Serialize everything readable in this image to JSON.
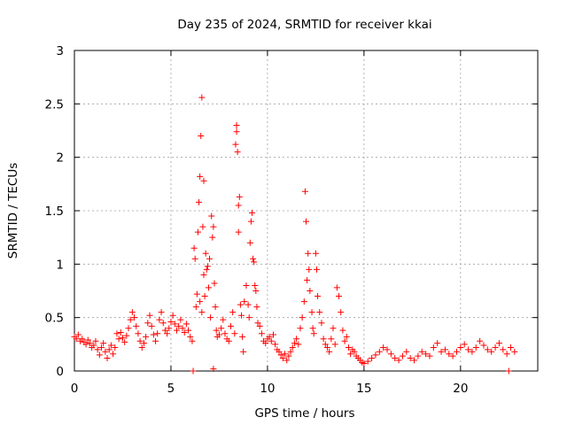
{
  "chart_data": {
    "type": "scatter",
    "title": "Day 235 of 2024, SRMTID for receiver kkai",
    "xlabel": "GPS time / hours",
    "ylabel": "SRMTID / TECUs",
    "xlim": [
      0,
      24
    ],
    "ylim": [
      0,
      3
    ],
    "xticks": [
      0,
      5,
      10,
      15,
      20
    ],
    "xtick_labels": [
      "0",
      "5",
      "10",
      "15",
      "20"
    ],
    "yticks": [
      0,
      0.5,
      1,
      1.5,
      2,
      2.5,
      3
    ],
    "ytick_labels": [
      "0",
      "0.5",
      "1",
      "1.5",
      "2",
      "2.5",
      "3"
    ],
    "grid": true,
    "marker": "+",
    "marker_color": "#ff0000",
    "series": [
      {
        "name": "SRMTID",
        "points": [
          [
            0.0,
            0.32
          ],
          [
            0.1,
            0.3
          ],
          [
            0.2,
            0.34
          ],
          [
            0.3,
            0.28
          ],
          [
            0.4,
            0.3
          ],
          [
            0.5,
            0.27
          ],
          [
            0.6,
            0.25
          ],
          [
            0.7,
            0.29
          ],
          [
            0.8,
            0.26
          ],
          [
            0.9,
            0.22
          ],
          [
            1.0,
            0.24
          ],
          [
            1.1,
            0.28
          ],
          [
            1.2,
            0.2
          ],
          [
            1.3,
            0.15
          ],
          [
            1.4,
            0.22
          ],
          [
            1.5,
            0.26
          ],
          [
            1.6,
            0.18
          ],
          [
            1.7,
            0.12
          ],
          [
            1.8,
            0.2
          ],
          [
            1.9,
            0.24
          ],
          [
            2.0,
            0.16
          ],
          [
            2.1,
            0.22
          ],
          [
            2.2,
            0.35
          ],
          [
            2.3,
            0.3
          ],
          [
            2.4,
            0.36
          ],
          [
            2.5,
            0.31
          ],
          [
            2.6,
            0.27
          ],
          [
            2.7,
            0.33
          ],
          [
            2.8,
            0.4
          ],
          [
            2.9,
            0.48
          ],
          [
            3.0,
            0.55
          ],
          [
            3.1,
            0.5
          ],
          [
            3.2,
            0.42
          ],
          [
            3.3,
            0.35
          ],
          [
            3.4,
            0.28
          ],
          [
            3.5,
            0.22
          ],
          [
            3.6,
            0.26
          ],
          [
            3.7,
            0.32
          ],
          [
            3.8,
            0.45
          ],
          [
            3.9,
            0.52
          ],
          [
            4.0,
            0.42
          ],
          [
            4.1,
            0.34
          ],
          [
            4.2,
            0.28
          ],
          [
            4.3,
            0.35
          ],
          [
            4.4,
            0.48
          ],
          [
            4.5,
            0.55
          ],
          [
            4.6,
            0.45
          ],
          [
            4.7,
            0.38
          ],
          [
            4.8,
            0.35
          ],
          [
            4.9,
            0.4
          ],
          [
            5.0,
            0.46
          ],
          [
            5.1,
            0.52
          ],
          [
            5.2,
            0.44
          ],
          [
            5.3,
            0.38
          ],
          [
            5.4,
            0.42
          ],
          [
            5.5,
            0.48
          ],
          [
            5.6,
            0.4
          ],
          [
            5.7,
            0.36
          ],
          [
            5.8,
            0.44
          ],
          [
            5.9,
            0.38
          ],
          [
            6.0,
            0.32
          ],
          [
            6.1,
            0.28
          ],
          [
            6.15,
            0.0
          ],
          [
            6.2,
            1.15
          ],
          [
            6.25,
            1.05
          ],
          [
            6.3,
            0.6
          ],
          [
            6.35,
            0.72
          ],
          [
            6.4,
            1.3
          ],
          [
            6.45,
            1.58
          ],
          [
            6.5,
            1.82
          ],
          [
            6.5,
            0.65
          ],
          [
            6.55,
            2.2
          ],
          [
            6.6,
            2.56
          ],
          [
            6.6,
            0.55
          ],
          [
            6.65,
            1.35
          ],
          [
            6.7,
            1.78
          ],
          [
            6.7,
            0.9
          ],
          [
            6.75,
            0.7
          ],
          [
            6.8,
            1.1
          ],
          [
            6.85,
            0.95
          ],
          [
            6.9,
            0.98
          ],
          [
            6.95,
            0.78
          ],
          [
            7.0,
            1.05
          ],
          [
            7.05,
            0.5
          ],
          [
            7.1,
            1.45
          ],
          [
            7.15,
            1.25
          ],
          [
            7.2,
            0.02
          ],
          [
            7.2,
            1.35
          ],
          [
            7.25,
            0.82
          ],
          [
            7.3,
            0.6
          ],
          [
            7.35,
            0.38
          ],
          [
            7.4,
            0.32
          ],
          [
            7.5,
            0.34
          ],
          [
            7.6,
            0.4
          ],
          [
            7.7,
            0.48
          ],
          [
            7.8,
            0.35
          ],
          [
            7.9,
            0.3
          ],
          [
            8.0,
            0.28
          ],
          [
            8.1,
            0.42
          ],
          [
            8.2,
            0.55
          ],
          [
            8.3,
            0.35
          ],
          [
            8.35,
            2.12
          ],
          [
            8.4,
            2.3
          ],
          [
            8.4,
            2.24
          ],
          [
            8.45,
            2.05
          ],
          [
            8.5,
            1.55
          ],
          [
            8.5,
            1.3
          ],
          [
            8.55,
            1.63
          ],
          [
            8.6,
            0.62
          ],
          [
            8.65,
            0.52
          ],
          [
            8.7,
            0.32
          ],
          [
            8.75,
            0.18
          ],
          [
            8.8,
            0.65
          ],
          [
            8.9,
            0.8
          ],
          [
            9.0,
            0.62
          ],
          [
            9.05,
            0.5
          ],
          [
            9.1,
            1.2
          ],
          [
            9.15,
            1.4
          ],
          [
            9.2,
            1.48
          ],
          [
            9.25,
            1.05
          ],
          [
            9.3,
            1.02
          ],
          [
            9.35,
            0.8
          ],
          [
            9.4,
            0.75
          ],
          [
            9.45,
            0.6
          ],
          [
            9.5,
            0.45
          ],
          [
            9.6,
            0.42
          ],
          [
            9.7,
            0.35
          ],
          [
            9.8,
            0.28
          ],
          [
            9.9,
            0.26
          ],
          [
            10.0,
            0.3
          ],
          [
            10.1,
            0.32
          ],
          [
            10.2,
            0.28
          ],
          [
            10.3,
            0.34
          ],
          [
            10.4,
            0.25
          ],
          [
            10.5,
            0.2
          ],
          [
            10.6,
            0.18
          ],
          [
            10.7,
            0.15
          ],
          [
            10.8,
            0.12
          ],
          [
            10.9,
            0.16
          ],
          [
            11.0,
            0.1
          ],
          [
            11.1,
            0.14
          ],
          [
            11.2,
            0.18
          ],
          [
            11.3,
            0.22
          ],
          [
            11.4,
            0.26
          ],
          [
            11.5,
            0.3
          ],
          [
            11.6,
            0.25
          ],
          [
            11.7,
            0.4
          ],
          [
            11.8,
            0.5
          ],
          [
            11.9,
            0.65
          ],
          [
            11.95,
            1.68
          ],
          [
            12.0,
            1.4
          ],
          [
            12.05,
            0.85
          ],
          [
            12.1,
            1.1
          ],
          [
            12.15,
            0.95
          ],
          [
            12.2,
            0.75
          ],
          [
            12.3,
            0.55
          ],
          [
            12.35,
            0.4
          ],
          [
            12.4,
            0.35
          ],
          [
            12.5,
            1.1
          ],
          [
            12.55,
            0.95
          ],
          [
            12.6,
            0.7
          ],
          [
            12.7,
            0.55
          ],
          [
            12.8,
            0.45
          ],
          [
            12.9,
            0.3
          ],
          [
            13.0,
            0.25
          ],
          [
            13.1,
            0.22
          ],
          [
            13.2,
            0.18
          ],
          [
            13.3,
            0.3
          ],
          [
            13.4,
            0.4
          ],
          [
            13.5,
            0.25
          ],
          [
            13.6,
            0.78
          ],
          [
            13.7,
            0.7
          ],
          [
            13.8,
            0.55
          ],
          [
            13.9,
            0.38
          ],
          [
            14.0,
            0.28
          ],
          [
            14.1,
            0.32
          ],
          [
            14.2,
            0.22
          ],
          [
            14.3,
            0.16
          ],
          [
            14.4,
            0.2
          ],
          [
            14.5,
            0.18
          ],
          [
            14.6,
            0.14
          ],
          [
            14.7,
            0.12
          ],
          [
            14.8,
            0.1
          ],
          [
            14.9,
            0.08
          ],
          [
            15.0,
            0.07
          ],
          [
            15.2,
            0.09
          ],
          [
            15.4,
            0.12
          ],
          [
            15.6,
            0.15
          ],
          [
            15.8,
            0.18
          ],
          [
            16.0,
            0.22
          ],
          [
            16.2,
            0.2
          ],
          [
            16.4,
            0.16
          ],
          [
            16.6,
            0.12
          ],
          [
            16.8,
            0.1
          ],
          [
            17.0,
            0.14
          ],
          [
            17.2,
            0.18
          ],
          [
            17.4,
            0.12
          ],
          [
            17.6,
            0.1
          ],
          [
            17.8,
            0.14
          ],
          [
            18.0,
            0.18
          ],
          [
            18.2,
            0.16
          ],
          [
            18.4,
            0.14
          ],
          [
            18.6,
            0.22
          ],
          [
            18.8,
            0.26
          ],
          [
            19.0,
            0.18
          ],
          [
            19.2,
            0.2
          ],
          [
            19.4,
            0.16
          ],
          [
            19.6,
            0.14
          ],
          [
            19.8,
            0.18
          ],
          [
            20.0,
            0.22
          ],
          [
            20.2,
            0.25
          ],
          [
            20.4,
            0.2
          ],
          [
            20.6,
            0.18
          ],
          [
            20.8,
            0.22
          ],
          [
            21.0,
            0.28
          ],
          [
            21.2,
            0.24
          ],
          [
            21.4,
            0.2
          ],
          [
            21.6,
            0.18
          ],
          [
            21.8,
            0.22
          ],
          [
            22.0,
            0.26
          ],
          [
            22.2,
            0.2
          ],
          [
            22.4,
            0.16
          ],
          [
            22.5,
            0.0
          ],
          [
            22.6,
            0.22
          ],
          [
            22.8,
            0.18
          ]
        ]
      }
    ]
  }
}
